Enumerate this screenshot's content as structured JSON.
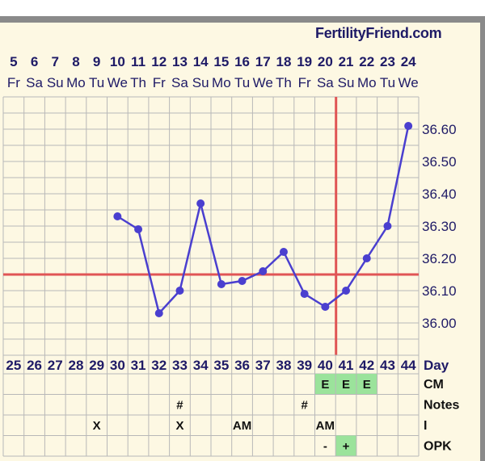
{
  "brand": "FertilityFriend.com",
  "colors": {
    "line": "#4a3fcf",
    "marker": "#e05555",
    "grid": "#b8b8b8",
    "text": "#1e1a66",
    "highlight": "#9be39b",
    "background": "#fdf8e3"
  },
  "chart_data": {
    "type": "line",
    "x_dates": [
      "5",
      "6",
      "7",
      "8",
      "9",
      "10",
      "11",
      "12",
      "13",
      "14",
      "15",
      "16",
      "17",
      "18",
      "19",
      "20",
      "21",
      "22",
      "23",
      "24"
    ],
    "x_weekdays": [
      "Fr",
      "Sa",
      "Su",
      "Mo",
      "Tu",
      "We",
      "Th",
      "Fr",
      "Sa",
      "Su",
      "Mo",
      "Tu",
      "We",
      "Th",
      "Fr",
      "Sa",
      "Su",
      "Mo",
      "Tu",
      "We"
    ],
    "cycle_days": [
      25,
      26,
      27,
      28,
      29,
      30,
      31,
      32,
      33,
      34,
      35,
      36,
      37,
      38,
      39,
      40,
      41,
      42,
      43,
      44
    ],
    "cycle_day_label": "Day",
    "series": [
      {
        "values": [
          null,
          null,
          null,
          null,
          null,
          36.33,
          36.29,
          36.03,
          36.1,
          36.37,
          36.12,
          36.13,
          36.16,
          36.22,
          36.09,
          36.05,
          36.1,
          36.2,
          36.3,
          36.61
        ]
      }
    ],
    "y_ticks": [
      "36.60",
      "36.50",
      "36.40",
      "36.30",
      "36.20",
      "36.10",
      "36.00"
    ],
    "ylim": [
      35.9,
      36.7
    ],
    "coverline": 36.15,
    "ovulation_cycle_day": 41,
    "grid": true
  },
  "rows": [
    {
      "label": "CM",
      "cells": [
        "",
        "",
        "",
        "",
        "",
        "",
        "",
        "",
        "",
        "",
        "",
        "",
        "",
        "",
        "",
        "E",
        "E",
        "E",
        "",
        ""
      ],
      "highlight": [
        15,
        16,
        17
      ]
    },
    {
      "label": "Notes",
      "cells": [
        "",
        "",
        "",
        "",
        "",
        "",
        "",
        "",
        "#",
        "",
        "",
        "",
        "",
        "",
        "#",
        "",
        "",
        "",
        "",
        ""
      ],
      "highlight": []
    },
    {
      "label": "I",
      "cells": [
        "",
        "",
        "",
        "",
        "X",
        "",
        "",
        "",
        "X",
        "",
        "",
        "AM",
        "",
        "",
        "",
        "AM",
        "",
        "",
        "",
        ""
      ],
      "highlight": []
    },
    {
      "label": "OPK",
      "cells": [
        "",
        "",
        "",
        "",
        "",
        "",
        "",
        "",
        "",
        "",
        "",
        "",
        "",
        "",
        "",
        "-",
        "+",
        "",
        "",
        ""
      ],
      "highlight": [
        16
      ]
    }
  ]
}
